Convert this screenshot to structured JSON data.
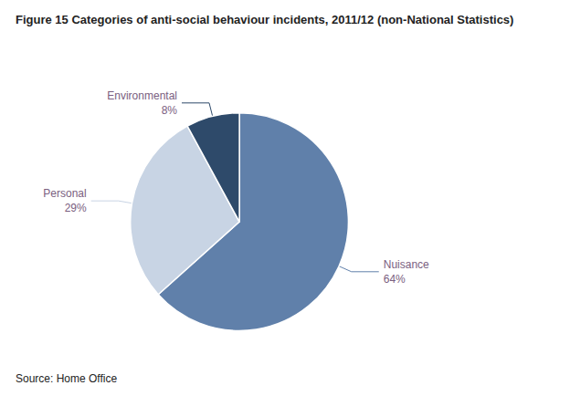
{
  "chart_data": {
    "type": "pie",
    "title": "Figure 15 Categories of anti-social behaviour incidents, 2011/12 (non-National Statistics)",
    "categories": [
      "Nuisance",
      "Personal",
      "Environmental"
    ],
    "values": [
      64,
      29,
      8
    ],
    "value_labels": [
      "64%",
      "29%",
      "8%"
    ],
    "colors": [
      "#6080aa",
      "#c8d4e4",
      "#2e4a6a"
    ],
    "data_labels": true,
    "annotations": [
      "Source: Home Office"
    ]
  }
}
